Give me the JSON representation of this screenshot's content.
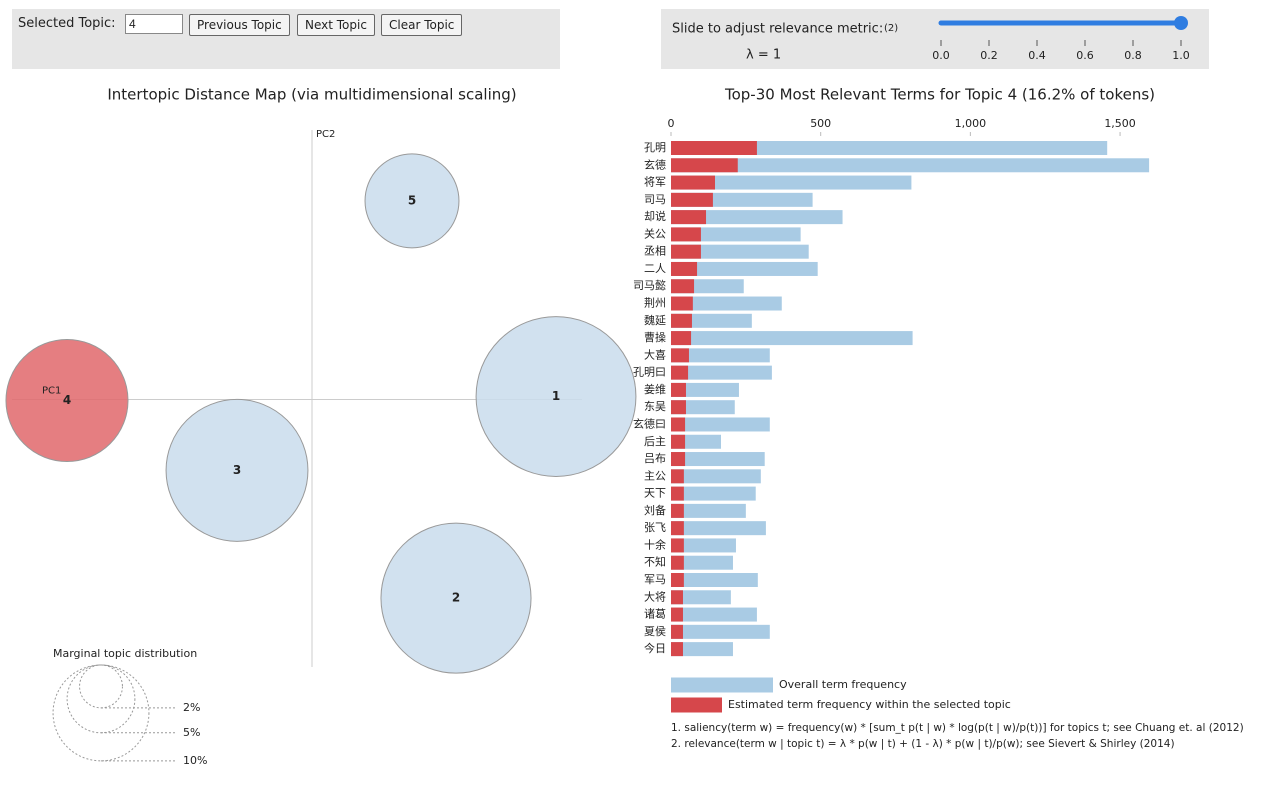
{
  "controls": {
    "selected_topic_label": "Selected Topic:",
    "selected_topic": 4,
    "buttons": [
      "Previous Topic",
      "Next Topic",
      "Clear Topic"
    ],
    "slider": {
      "label": "Slide to adjust relevance metric:",
      "note": "(2)",
      "lambda_label": "λ = 1",
      "value": 1,
      "lim": [
        0,
        1
      ],
      "ticks": [
        {
          "value": 0,
          "label": "0.0"
        },
        {
          "value": 0.2,
          "label": "0.2"
        },
        {
          "value": 0.4,
          "label": "0.4"
        },
        {
          "value": 0.6,
          "label": "0.6"
        },
        {
          "value": 0.8,
          "label": "0.8"
        },
        {
          "value": 1,
          "label": "1.0"
        }
      ]
    }
  },
  "chart_data": [
    {
      "type": "scatter",
      "title": "Intertopic Distance Map (via multidimensional scaling)",
      "xlabel": "PC1",
      "ylabel": "PC2",
      "labels": [
        "1",
        "2",
        "3",
        "4",
        "5"
      ],
      "x": [
        0.244,
        0.144,
        -0.075,
        -0.245,
        0.1
      ],
      "y": [
        0.003,
        -0.199,
        -0.071,
        -0.001,
        0.199
      ],
      "sizes": [
        27.8,
        24.5,
        21.9,
        16.2,
        9.6
      ],
      "colors": [
        "#c9dcec",
        "#c9dcec",
        "#c9dcec",
        "#e0676b",
        "#c9dcec"
      ],
      "xlim": [
        -0.3,
        0.3
      ],
      "ylim": [
        -0.27,
        0.27
      ],
      "size_legend": {
        "title": "Marginal topic distribution",
        "values": [
          {
            "value": 2,
            "label": "2%"
          },
          {
            "value": 5,
            "label": "5%"
          },
          {
            "value": 10,
            "label": "10%"
          }
        ]
      }
    },
    {
      "type": "bar",
      "orientation": "horizontal",
      "title": "Top-30 Most Relevant Terms for Topic 4 (16.2% of tokens)",
      "categories": [
        "孔明",
        "玄德",
        "将军",
        "司马",
        "却说",
        "关公",
        "丞相",
        "二人",
        "司马懿",
        "荆州",
        "魏延",
        "曹操",
        "大喜",
        "孔明曰",
        "姜维",
        "东吴",
        "玄德曰",
        "后主",
        "吕布",
        "主公",
        "天下",
        "刘备",
        "张飞",
        "十余",
        "不知",
        "军马",
        "大将",
        "诸葛",
        "夏侯",
        "今日"
      ],
      "series": [
        {
          "name": "Overall term frequency",
          "color": "#a9cbe4",
          "values": [
            1457,
            1597,
            803,
            473,
            573,
            433,
            460,
            490,
            243,
            370,
            270,
            807,
            330,
            337,
            227,
            213,
            330,
            167,
            313,
            300,
            283,
            250,
            317,
            217,
            207,
            290,
            200,
            287,
            330,
            207
          ]
        },
        {
          "name": "Estimated term frequency within the selected topic",
          "color": "#d6474b",
          "values": [
            287,
            223,
            147,
            140,
            117,
            100,
            100,
            87,
            77,
            73,
            70,
            67,
            60,
            57,
            50,
            50,
            47,
            47,
            47,
            43,
            43,
            43,
            43,
            43,
            43,
            43,
            40,
            40,
            40,
            40
          ]
        }
      ],
      "xlim": [
        0,
        1600
      ],
      "xticks": [
        0,
        500,
        {
          "value": 1000,
          "label": "1,000"
        },
        {
          "value": 1500,
          "label": "1,500"
        }
      ],
      "notes": [
        "1. saliency(term w) = frequency(w) * [sum_t p(t | w) * log(p(t | w)/p(t))] for topics t; see Chuang et. al (2012)",
        "2. relevance(term w | topic t) = λ * p(w | t) + (1 - λ) * p(w | t)/p(w); see Sievert & Shirley (2014)"
      ]
    }
  ]
}
